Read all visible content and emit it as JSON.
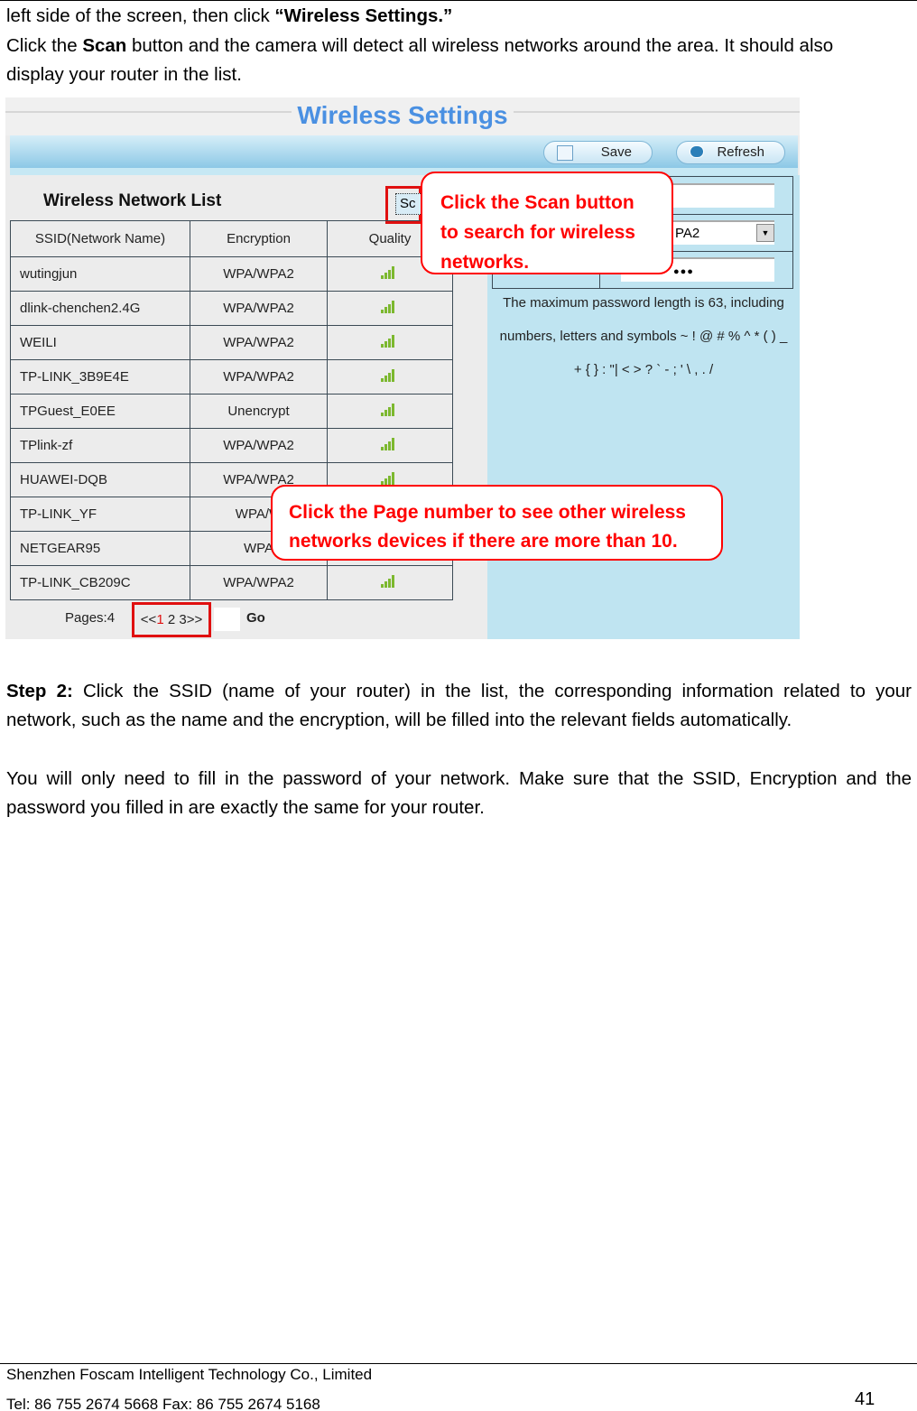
{
  "intro": {
    "line1_pre": "left side of the screen, then click ",
    "line1_bold": "“Wireless Settings.”",
    "line2_pre": "Click the ",
    "line2_bold": "Scan",
    "line2_post": " button and the camera will detect all wireless networks around the area. It should also",
    "line3": "display your router in the list."
  },
  "screenshot": {
    "title": "Wireless Settings",
    "toolbar": {
      "save_label": "Save",
      "refresh_label": "Refresh"
    },
    "list_title": "Wireless Network List",
    "scan_label": "Sc",
    "columns": [
      "SSID(Network Name)",
      "Encryption",
      "Quality"
    ],
    "rows": [
      {
        "ssid": "wutingjun",
        "encryption": "WPA/WPA2"
      },
      {
        "ssid": "dlink-chenchen2.4G",
        "encryption": "WPA/WPA2"
      },
      {
        "ssid": "WEILI",
        "encryption": "WPA/WPA2"
      },
      {
        "ssid": "TP-LINK_3B9E4E",
        "encryption": "WPA/WPA2"
      },
      {
        "ssid": "TPGuest_E0EE",
        "encryption": "Unencrypt"
      },
      {
        "ssid": "TPlink-zf",
        "encryption": "WPA/WPA2"
      },
      {
        "ssid": "HUAWEI-DQB",
        "encryption": "WPA/WPA2"
      },
      {
        "ssid": "TP-LINK_YF",
        "encryption": "WPA/W"
      },
      {
        "ssid": "NETGEAR95",
        "encryption": "WPA"
      },
      {
        "ssid": "TP-LINK_CB209C",
        "encryption": "WPA/WPA2"
      }
    ],
    "pagination": {
      "pages_label": "Pages:4",
      "prev": "<<",
      "current": "1",
      "others": " 2 3",
      "next": ">>",
      "go_label": "Go"
    },
    "form": {
      "encryption_value": "PA2",
      "password_value": "●●●"
    },
    "note_lines": [
      "The maximum password length is 63, including",
      "numbers, letters and symbols ~ ! @ # % ^ * ( ) _",
      "+ { } : \"| < > ? ` - ; ' \\ , . /"
    ],
    "callout_scan": [
      "Click the Scan button",
      "to search for wireless",
      "networks."
    ],
    "callout_page": [
      "Click the Page number to see other wireless",
      "networks devices if there are more than 10."
    ],
    "colors": {
      "callout": "#ff0000",
      "title": "#4a90e2",
      "panel": "#bfe4f1"
    }
  },
  "step2": {
    "bold": "Step 2:",
    "line1": " Click the SSID (name of your router) in the list, the corresponding information related to your",
    "line2": "network, such as the name and the encryption, will be filled into the relevant fields automatically."
  },
  "para2": {
    "line1": "You will only need to fill in the password of your network. Make sure that the SSID, Encryption and the",
    "line2": "password you filled in are exactly the same for your router."
  },
  "footer": {
    "company": "Shenzhen Foscam Intelligent Technology Co., Limited",
    "contact": "Tel: 86 755 2674 5668 Fax: 86 755 2674 5168",
    "page_number": "41"
  }
}
